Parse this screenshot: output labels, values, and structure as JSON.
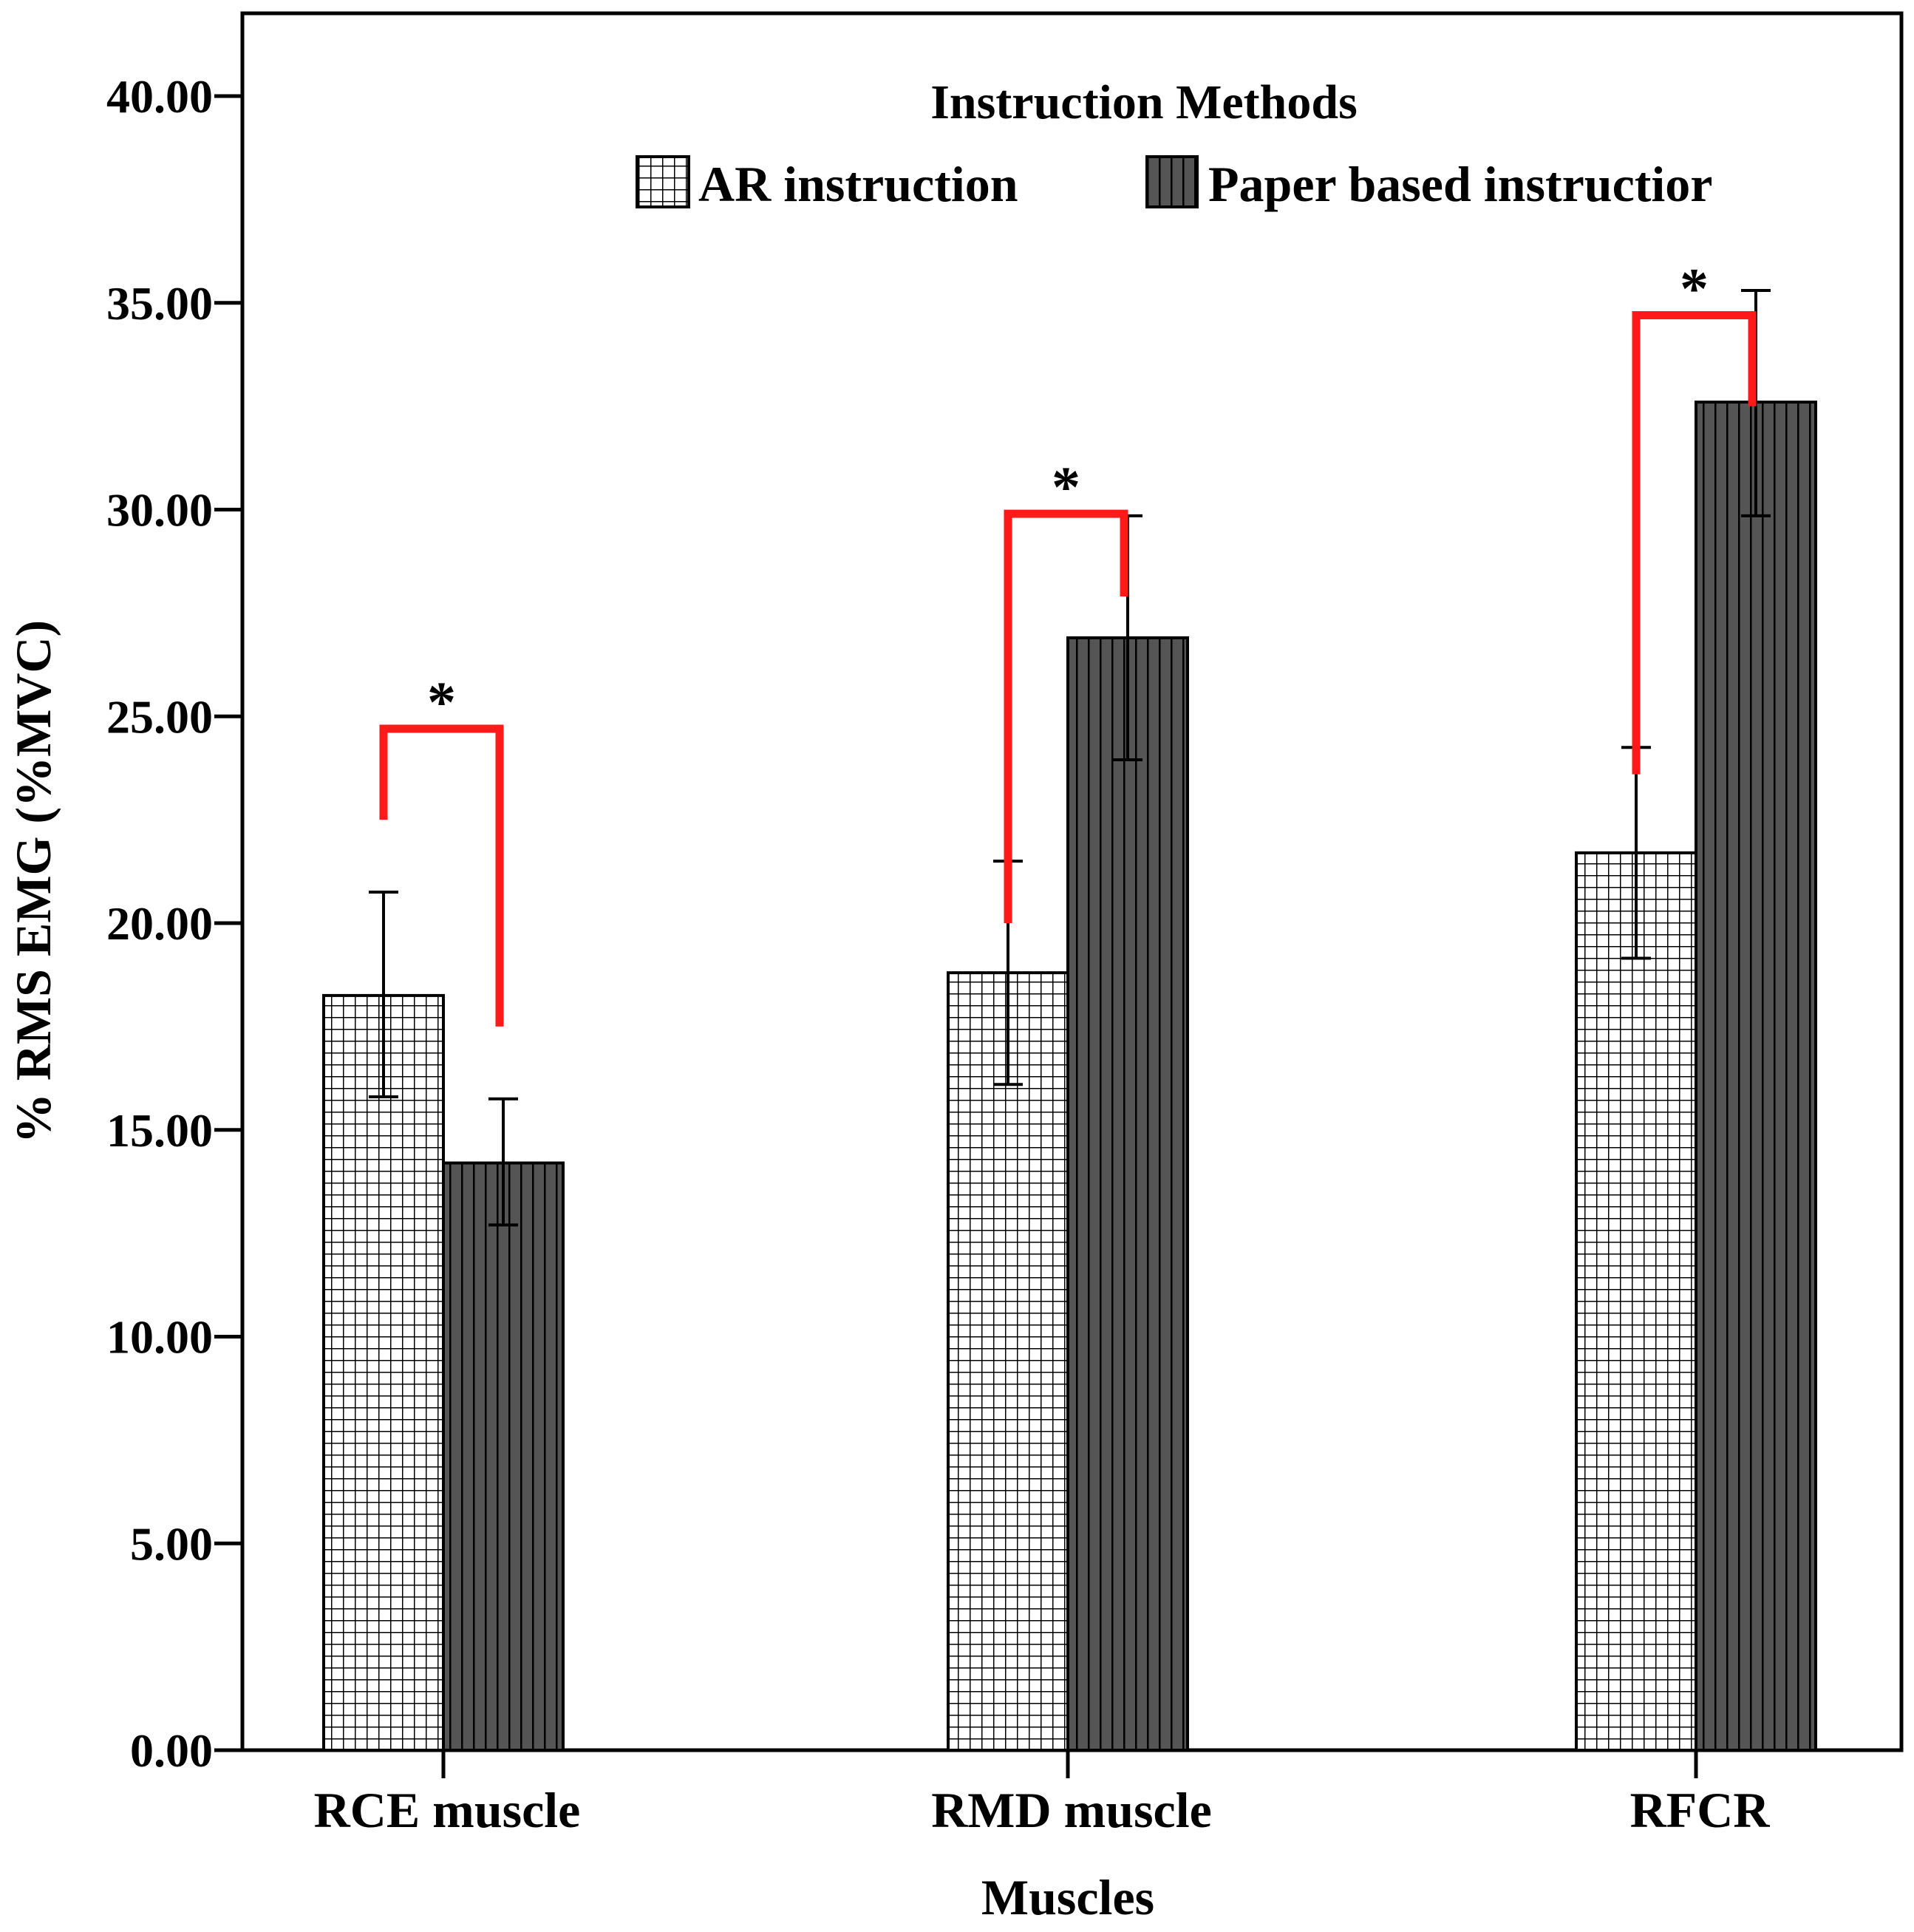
{
  "chart_data": {
    "type": "bar",
    "title": "",
    "xlabel": "Muscles",
    "ylabel": "% RMS EMG (%MVC)",
    "ylim": [
      0,
      42
    ],
    "yticks": [
      "0.00",
      "5.00",
      "10.00",
      "15.00",
      "20.00",
      "25.00",
      "30.00",
      "35.00",
      "40.00"
    ],
    "categories": [
      "RCE muscle",
      "RMD muscle",
      "RFCR"
    ],
    "legend": {
      "title": "Instruction Methods",
      "position": "top"
    },
    "series": [
      {
        "name": "AR instruction",
        "pattern": "grid",
        "values": [
          18.25,
          18.8,
          21.7
        ],
        "err_low": [
          15.8,
          16.1,
          19.15
        ],
        "err_high": [
          20.75,
          21.5,
          24.25
        ]
      },
      {
        "name": "Paper based instructior",
        "pattern": "vertical-stripes",
        "values": [
          14.2,
          26.9,
          32.6
        ],
        "err_low": [
          12.7,
          23.95,
          29.85
        ],
        "err_high": [
          15.75,
          29.85,
          35.3
        ]
      }
    ],
    "significance": [
      {
        "category": "RCE muscle",
        "marker": "*",
        "bracket_y": 24.7,
        "left_end": 22.5,
        "right_end": 17.5
      },
      {
        "category": "RMD muscle",
        "marker": "*",
        "bracket_y": 29.9,
        "left_end": 20.0,
        "right_end": 27.9
      },
      {
        "category": "RFCR",
        "marker": "*",
        "bracket_y": 34.7,
        "left_end": 23.6,
        "right_end": 32.5
      }
    ],
    "colors": {
      "paper_fill": "#555555",
      "grid_fill": "#ffffff",
      "bracket": "#ff1a1a",
      "axis": "#000000"
    }
  }
}
